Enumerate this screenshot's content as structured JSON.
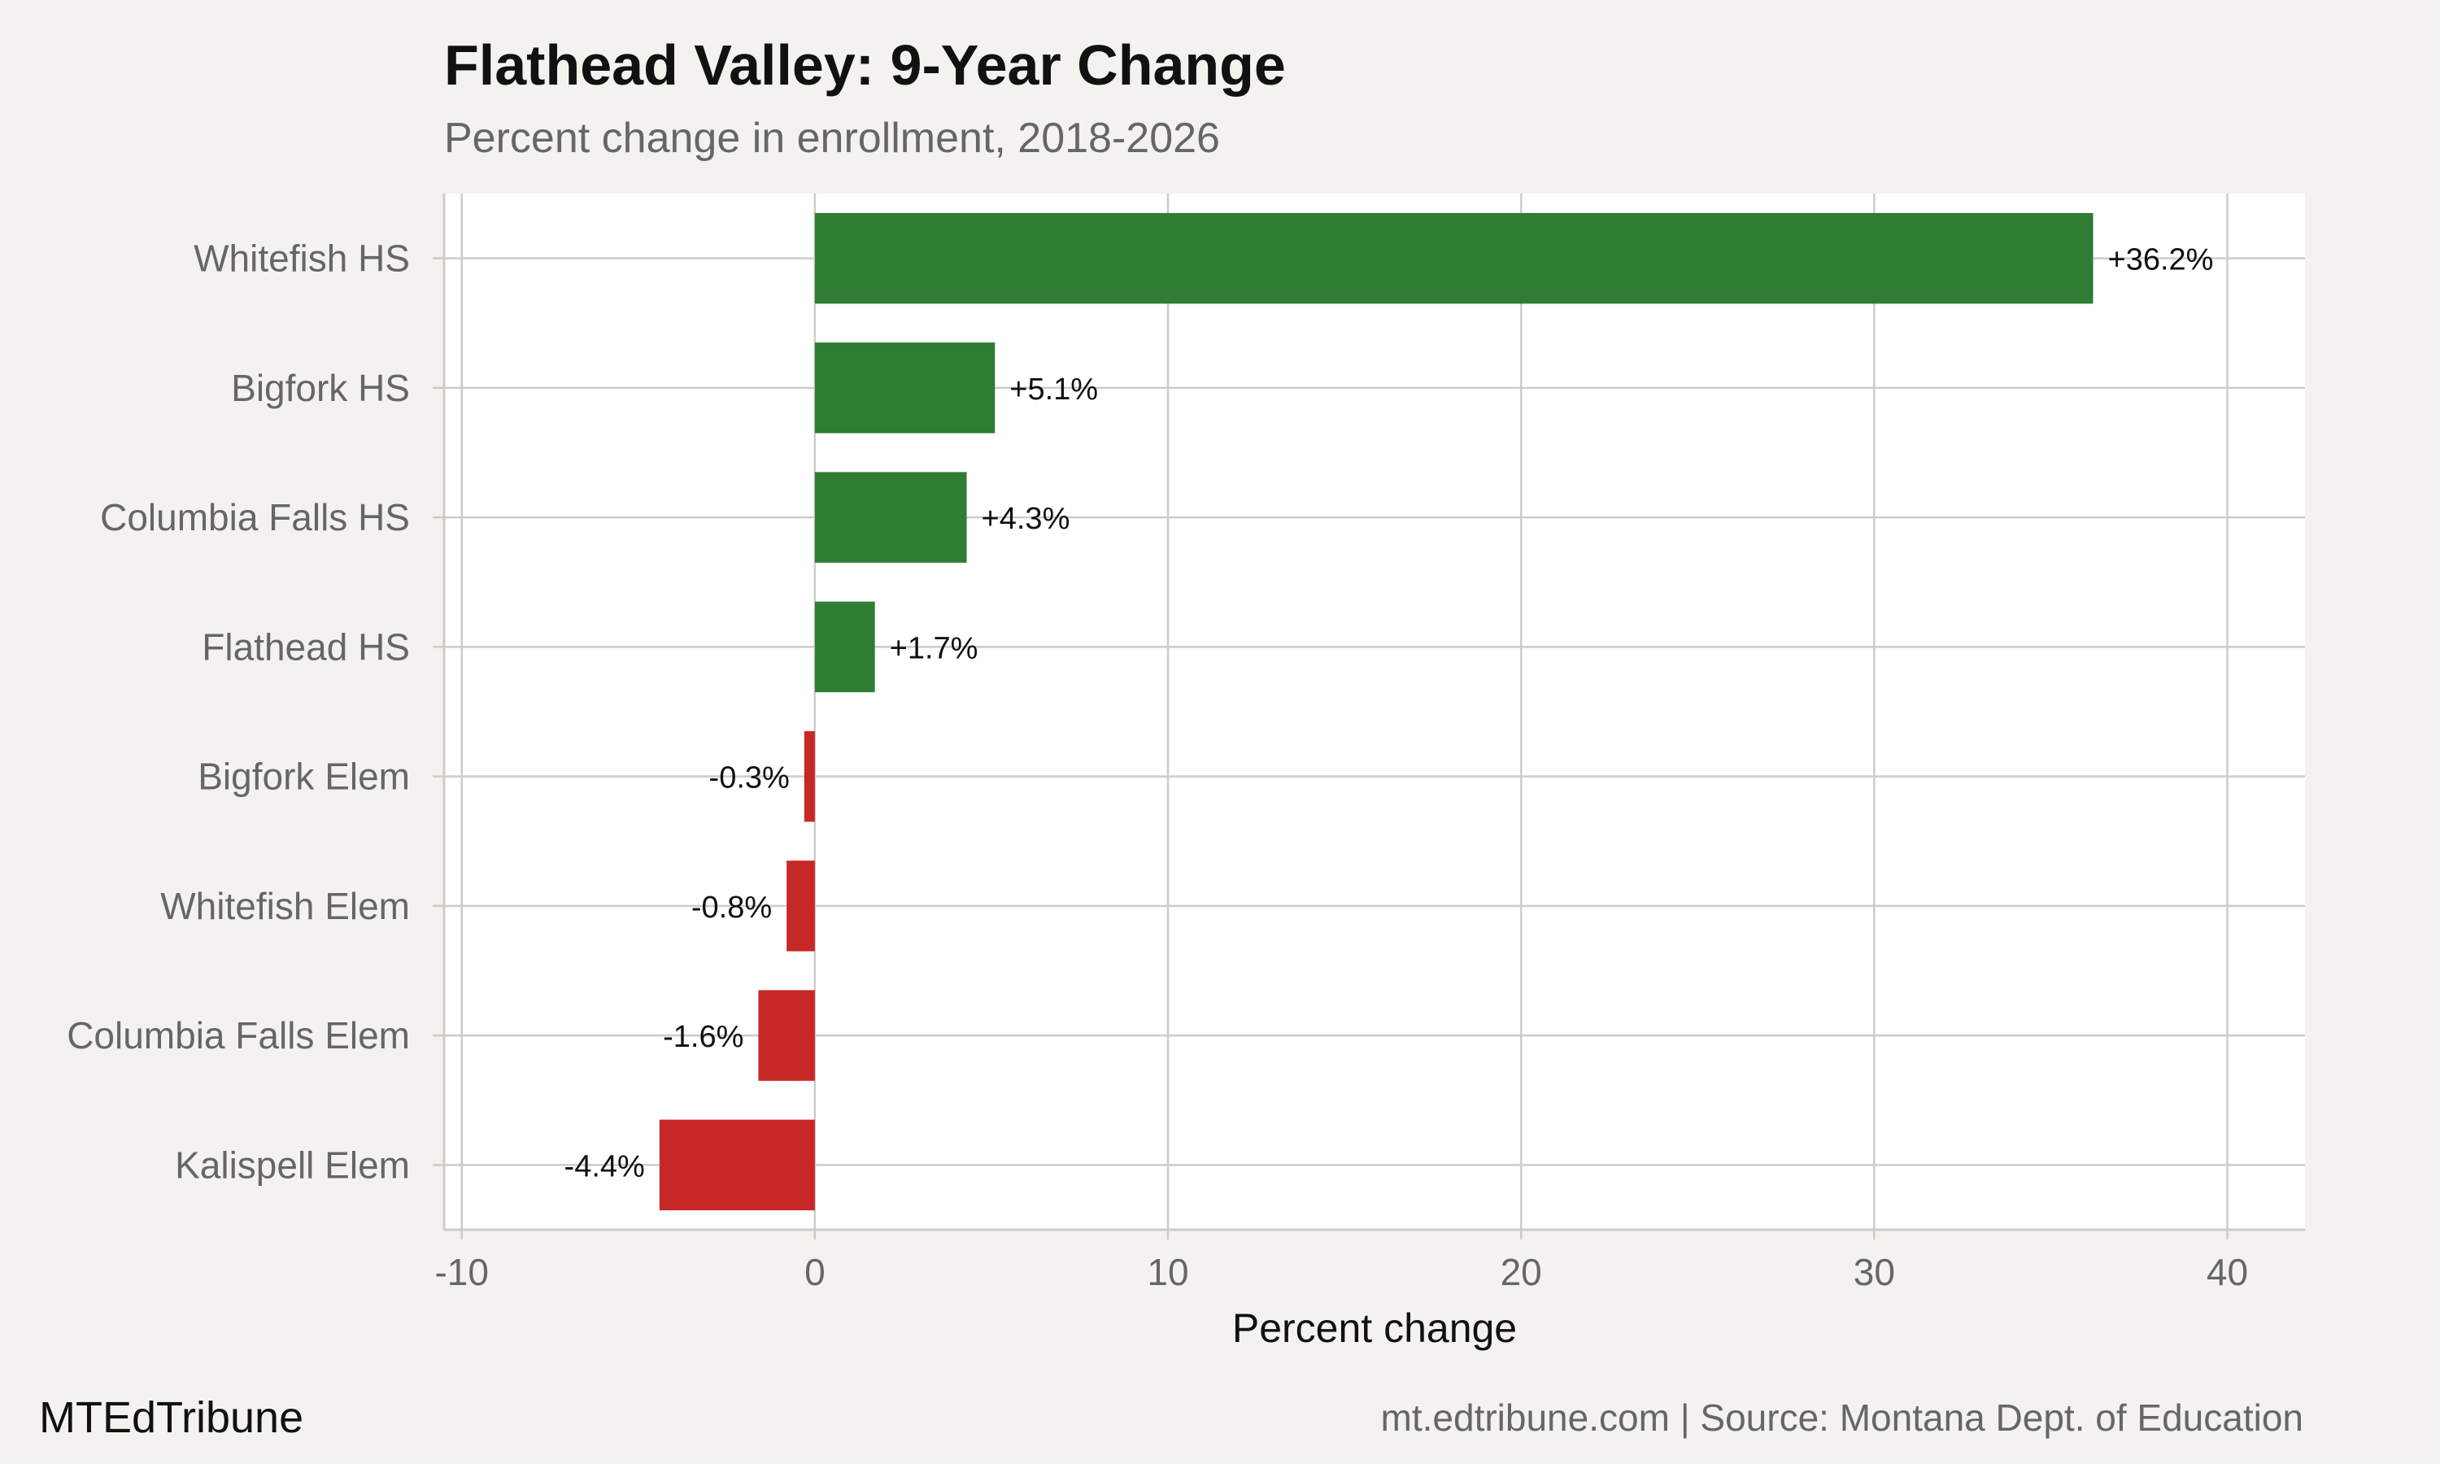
{
  "colors": {
    "positive": "#2e7d32",
    "negative": "#c62828",
    "panel_background": "#ffffff",
    "page_background": "#f4f2ee",
    "grid": "#cfccc6"
  },
  "chart_data": {
    "type": "bar",
    "orientation": "horizontal",
    "title": "Flathead Valley: 9-Year Change",
    "subtitle": "Percent change in enrollment, 2018-2026",
    "xlabel": "Percent change",
    "ylabel": "",
    "xlim": [
      -10.5,
      42.2
    ],
    "xticks": [
      -10,
      0,
      10,
      20,
      30,
      40
    ],
    "grid": true,
    "legend": "none",
    "categories": [
      "Whitefish HS",
      "Bigfork HS",
      "Columbia Falls HS",
      "Flathead HS",
      "Bigfork Elem",
      "Whitefish Elem",
      "Columbia Falls Elem",
      "Kalispell Elem"
    ],
    "values": [
      36.2,
      5.1,
      4.3,
      1.7,
      -0.3,
      -0.8,
      -1.6,
      -4.4
    ],
    "labels": [
      "+36.2%",
      "+5.1%",
      "+4.3%",
      "+1.7%",
      "-0.3%",
      "-0.8%",
      "-1.6%",
      "-4.4%"
    ]
  },
  "footer": {
    "brand": "MTEdTribune",
    "source": "mt.edtribune.com | Source: Montana Dept. of Education"
  }
}
